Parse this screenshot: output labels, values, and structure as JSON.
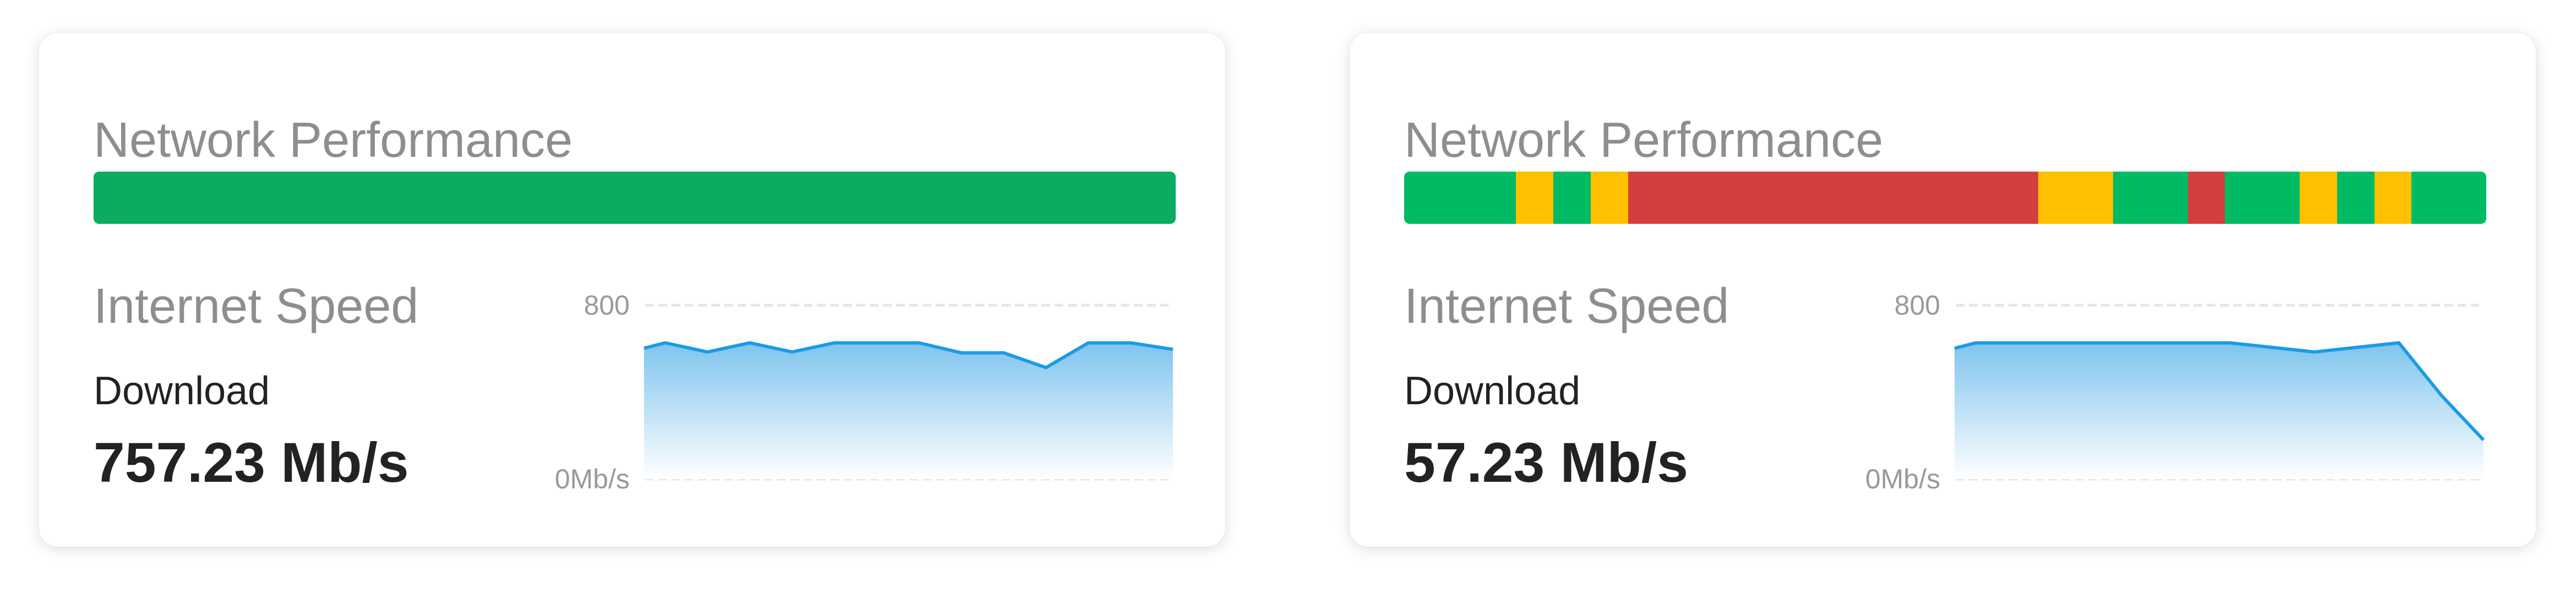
{
  "cards": [
    {
      "title": "Network Performance",
      "performance_bar": {
        "segments": [
          {
            "units": 1,
            "status": "good"
          }
        ]
      },
      "speed_title": "Internet Speed",
      "download_label": "Download",
      "download_value": "757.23 Mb/s"
    },
    {
      "title": "Network Performance",
      "performance_bar": {
        "segments": [
          {
            "units": 3,
            "status": "good"
          },
          {
            "units": 1,
            "status": "fair"
          },
          {
            "units": 1,
            "status": "good"
          },
          {
            "units": 1,
            "status": "fair"
          },
          {
            "units": 11,
            "status": "poor"
          },
          {
            "units": 2,
            "status": "fair"
          },
          {
            "units": 2,
            "status": "good"
          },
          {
            "units": 1,
            "status": "poor"
          },
          {
            "units": 2,
            "status": "good"
          },
          {
            "units": 1,
            "status": "fair"
          },
          {
            "units": 1,
            "status": "good"
          },
          {
            "units": 1,
            "status": "fair"
          },
          {
            "units": 2,
            "status": "good"
          }
        ]
      },
      "speed_title": "Internet Speed",
      "download_label": "Download",
      "download_value": "57.23 Mb/s"
    }
  ],
  "colors": {
    "single_good": "#0bab61",
    "good": "#00bb63",
    "fair": "#ffc000",
    "poor": "#d33f3d",
    "line": "#1a9be6",
    "grid": "#e6e6e6"
  },
  "chart_data": [
    {
      "type": "area",
      "ylim": [
        0,
        800
      ],
      "y_tick_labels": [
        "800",
        "0Mb/s"
      ],
      "grid": true,
      "values": [
        602,
        627,
        585,
        627,
        585,
        627,
        627,
        627,
        581,
        581,
        513,
        627,
        627,
        597
      ]
    },
    {
      "type": "area",
      "ylim": [
        0,
        800
      ],
      "y_tick_labels": [
        "800",
        "0Mb/s"
      ],
      "grid": true,
      "values": [
        602,
        627,
        627,
        627,
        627,
        627,
        627,
        627,
        606,
        585,
        606,
        627,
        386,
        180
      ]
    }
  ]
}
